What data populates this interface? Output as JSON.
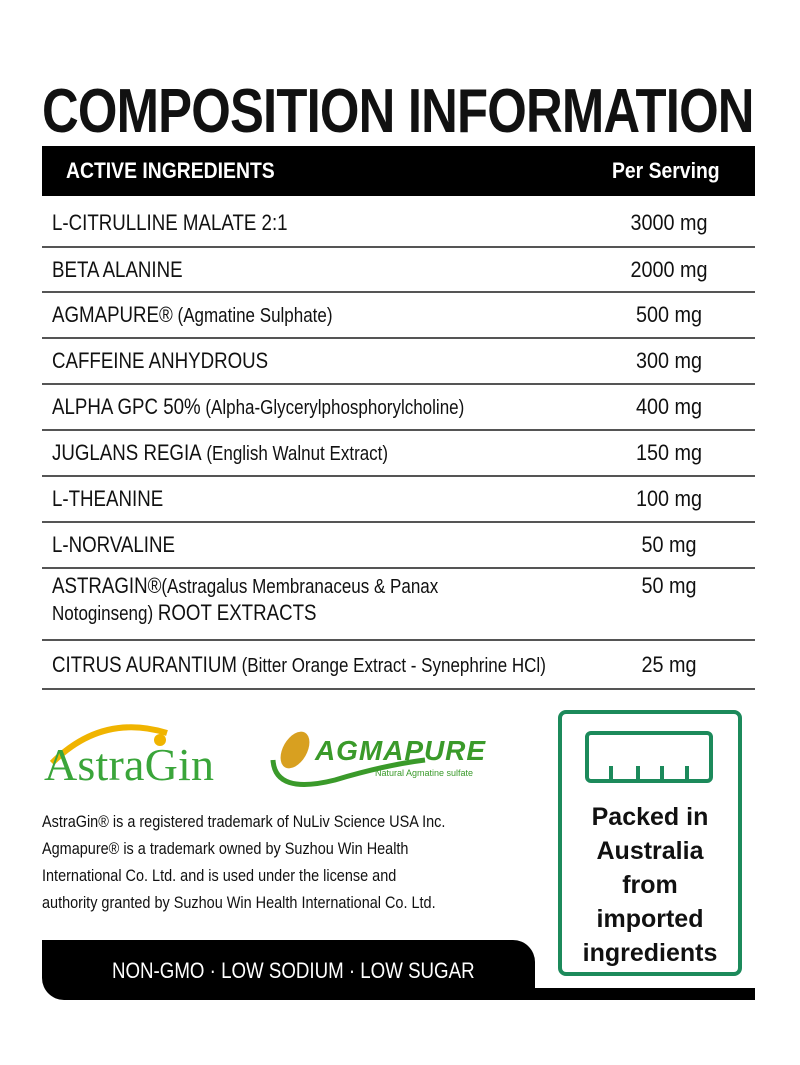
{
  "title": "COMPOSITION INFORMATION",
  "header": {
    "col1": "ACTIVE INGREDIENTS",
    "col2": "Per Serving"
  },
  "rows": [
    {
      "name": "L-CITRULLINE MALATE 2:1",
      "detail": "",
      "amount": "3000 mg"
    },
    {
      "name": "BETA ALANINE",
      "detail": "",
      "amount": "2000 mg"
    },
    {
      "name": "AGMAPURE®",
      "detail": " (Agmatine Sulphate)",
      "amount": "500 mg"
    },
    {
      "name": "CAFFEINE ANHYDROUS",
      "detail": "",
      "amount": "300 mg"
    },
    {
      "name": "ALPHA GPC 50%",
      "detail": " (Alpha-Glycerylphosphorylcholine)",
      "amount": "400 mg"
    },
    {
      "name": "JUGLANS REGIA",
      "detail": " (English Walnut Extract)",
      "amount": "150 mg"
    },
    {
      "name": "L-THEANINE",
      "detail": "",
      "amount": "100 mg"
    },
    {
      "name": "L-NORVALINE",
      "detail": "",
      "amount": "50 mg"
    },
    {
      "name": "ASTRAGIN®",
      "detail": "(Astragalus Membranaceus & Panax",
      "line2a": "Notoginseng) ",
      "line2b": "ROOT EXTRACTS",
      "amount": "50 mg"
    },
    {
      "name": "CITRUS AURANTIUM",
      "detail": " (Bitter Orange Extract - Synephrine HCl)",
      "amount": "25 mg"
    }
  ],
  "logos": {
    "astragin": "AstraGin",
    "agmapure": "AGMAPURE",
    "agmapure_tag": "Natural Agmatine sulfate"
  },
  "trademark": [
    "AstraGin® is a registered trademark of NuLiv Science USA Inc.",
    "Agmapure® is a trademark owned by Suzhou Win Health",
    "International Co. Ltd. and is used under the license and",
    "authority granted by Suzhou Win Health International Co. Ltd."
  ],
  "band": "NON-GMO · LOW SODIUM · LOW SUGAR",
  "packed": [
    "Packed in",
    "Australia",
    "from",
    "imported",
    "ingredients"
  ],
  "colors": {
    "green": "#1c8a5b",
    "black": "#000000"
  }
}
